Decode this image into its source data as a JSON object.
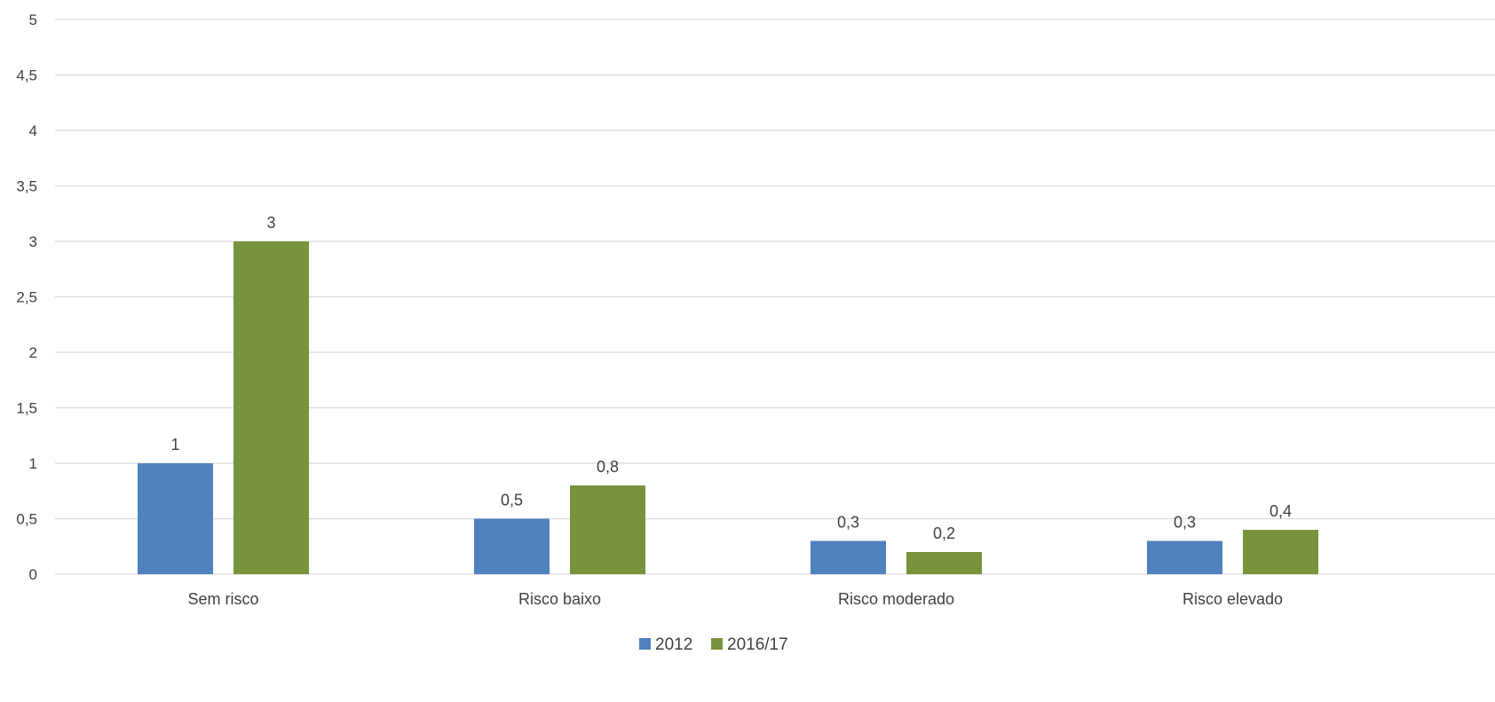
{
  "chart_data": {
    "type": "bar",
    "categories": [
      "Sem risco",
      "Risco baixo",
      "Risco moderado",
      "Risco elevado"
    ],
    "series": [
      {
        "name": "2012",
        "values": [
          1,
          0.5,
          0.3,
          0.3
        ],
        "labels": [
          "1",
          "0,5",
          "0,3",
          "0,3"
        ],
        "color": "#4f81bd"
      },
      {
        "name": "2016/17",
        "values": [
          3,
          0.8,
          0.2,
          0.4
        ],
        "labels": [
          "3",
          "0,8",
          "0,2",
          "0,4"
        ],
        "color": "#77933c"
      }
    ],
    "yticks": [
      0,
      0.5,
      1,
      1.5,
      2,
      2.5,
      3,
      3.5,
      4,
      4.5,
      5
    ],
    "ytick_labels": [
      "0",
      "0,5",
      "1",
      "1,5",
      "2",
      "2,5",
      "3",
      "3,5",
      "4",
      "4,5",
      "5"
    ],
    "ylim": [
      0,
      5
    ],
    "grid": true,
    "legend_position": "bottom"
  }
}
